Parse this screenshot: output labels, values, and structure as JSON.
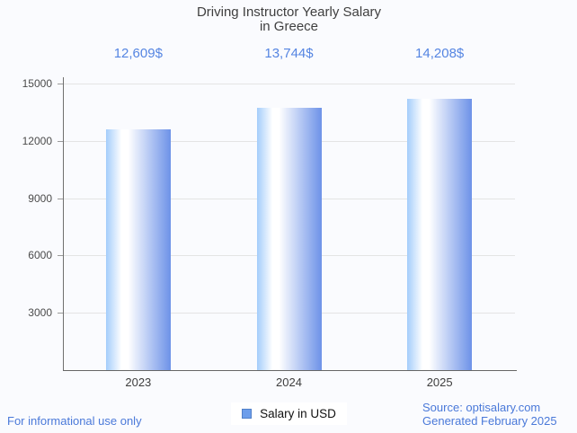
{
  "title": {
    "line1": "Driving Instructor Yearly Salary",
    "line2": "in Greece"
  },
  "chart_data": {
    "type": "bar",
    "title": "Driving Instructor Yearly Salary in Greece",
    "categories": [
      "2023",
      "2024",
      "2025"
    ],
    "values": [
      12609,
      13744,
      14208
    ],
    "bar_labels": [
      "12,609$",
      "13,744$",
      "14,208$"
    ],
    "xlabel": "",
    "ylabel": "",
    "ylim": [
      0,
      15000
    ],
    "yticks": [
      3000,
      6000,
      9000,
      12000,
      15000
    ],
    "ytick_labels": [
      "3000",
      "6000",
      "9000",
      "12000",
      "15000"
    ],
    "grid": true,
    "legend_position": "bottom",
    "series_name": "Salary in USD"
  },
  "legend": {
    "label": "Salary in USD"
  },
  "footer": {
    "left": "For informational use only",
    "source": "Source: optisalary.com",
    "generated": "Generated February 2025"
  },
  "colors": {
    "background": "#fafbfe",
    "title_text": "#3f3f3f",
    "value_label_text": "#5585e2",
    "axis_label_text": "#3d3d3d",
    "gridline": "#e4e4e4",
    "axis_line": "#6f6f6f",
    "bar_gradient_left": "#a4cdfb",
    "bar_gradient_mid": "#ffffff",
    "bar_gradient_right": "#6d92e8",
    "legend_swatch_fill": "#6d9eeb",
    "legend_swatch_border": "#5180c9",
    "footer_link_text": "#4a79d9"
  }
}
